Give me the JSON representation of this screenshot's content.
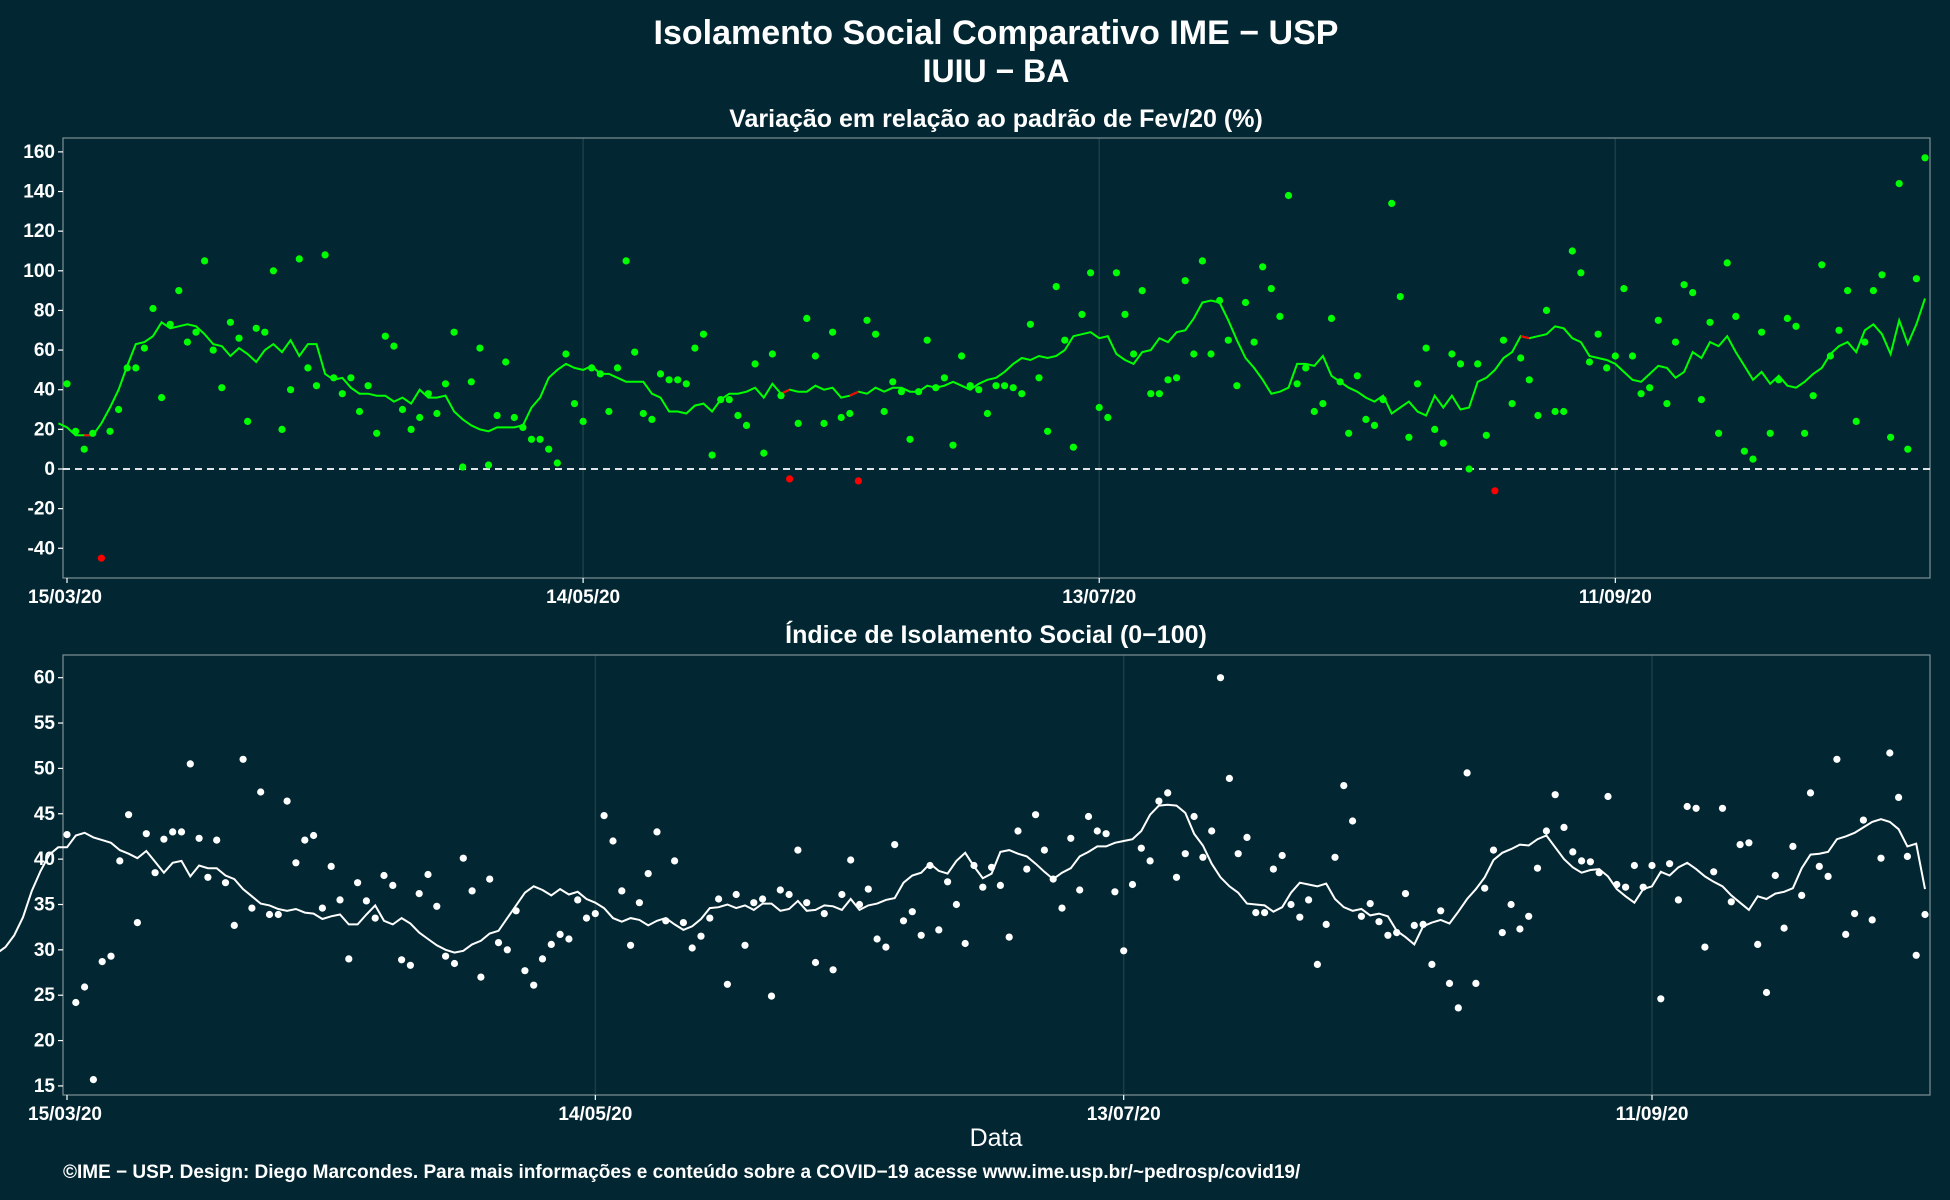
{
  "title": {
    "line1": "Isolamento Social Comparativo IME − USP",
    "line2": "IUIU − BA"
  },
  "footer": "©IME − USP. Design: Diego Marcondes. Para mais informações e conteúdo sobre a COVID−19 acesse www.ime.usp.br/~pedrosp/covid19/",
  "colors": {
    "background": "#022732",
    "positive": "#00ff00",
    "negative": "#ff0000",
    "index": "#ffffff",
    "grid": "#1d3d46"
  },
  "chart_data": [
    {
      "type": "scatter",
      "title": "Variação em relação ao padrão de Fev/20 (%)",
      "xlabel": "",
      "ylabel": "",
      "x_start_label": "15/03/20",
      "x_tick_labels": [
        "15/03/20",
        "14/05/20",
        "13/07/20",
        "11/09/20"
      ],
      "ylim": [
        -55,
        167
      ],
      "y_ticks": [
        -40,
        -20,
        0,
        20,
        40,
        60,
        80,
        100,
        120,
        140,
        160
      ],
      "reference_line": 0,
      "grid": true,
      "series": [
        {
          "values": [
            43,
            19,
            10,
            18,
            -45,
            19,
            30,
            51,
            51,
            61,
            81,
            36,
            73,
            90,
            64,
            69,
            105,
            60,
            41,
            74,
            66,
            24,
            71,
            69,
            100,
            20,
            40,
            106,
            51,
            42,
            108,
            46,
            38,
            46,
            29,
            42,
            18,
            67,
            62,
            30,
            20,
            26,
            38,
            28,
            43,
            69,
            1,
            44,
            61,
            2,
            27,
            54,
            26,
            21,
            15,
            15,
            10,
            3,
            58,
            33,
            24,
            51,
            48,
            29,
            51,
            105,
            59,
            28,
            25,
            48,
            45,
            45,
            43,
            61,
            68,
            7,
            35,
            35,
            27,
            22,
            53,
            8,
            58,
            37,
            -5,
            23,
            76,
            57,
            23,
            69,
            26,
            28,
            -6,
            75,
            68,
            29,
            44,
            39,
            15,
            39,
            65,
            41,
            46,
            12,
            57,
            42,
            40,
            28,
            42,
            42,
            41,
            38,
            73,
            46,
            19,
            92,
            65,
            11,
            78,
            99,
            31,
            26,
            99,
            78,
            58,
            90,
            38,
            38,
            45,
            46,
            95,
            58,
            105,
            58,
            85,
            65,
            42,
            84,
            64,
            102,
            91,
            77,
            138,
            43,
            51,
            29,
            33,
            76,
            44,
            18,
            47,
            25,
            22,
            35,
            134,
            87,
            16,
            43,
            61,
            20,
            13,
            58,
            53,
            0,
            53,
            17,
            -11,
            65,
            33,
            56,
            45,
            27,
            80,
            29,
            29,
            110,
            99,
            54,
            68,
            51,
            57,
            91,
            57,
            38,
            41,
            75,
            33,
            64,
            93,
            89,
            35,
            74,
            18,
            104,
            77,
            9,
            5,
            69,
            18,
            45,
            76,
            72,
            18,
            37,
            103,
            57,
            70,
            90,
            24,
            64,
            90,
            98,
            16,
            144,
            10,
            96,
            157
          ]
        }
      ],
      "moving_average": [
        23,
        21,
        17,
        17,
        17,
        23,
        31,
        40,
        52,
        63,
        64,
        67,
        74,
        71,
        72,
        73,
        72,
        68,
        63,
        62,
        57,
        61,
        58,
        54,
        60,
        63,
        59,
        65,
        57,
        63,
        63,
        48,
        45,
        46,
        41,
        38,
        38,
        37,
        37,
        34,
        36,
        33,
        40,
        36,
        36,
        37,
        29,
        25,
        22,
        20,
        19,
        21,
        21,
        21,
        22,
        31,
        36,
        46,
        50,
        53,
        51,
        50,
        52,
        48,
        48,
        46,
        44,
        44,
        44,
        38,
        36,
        29,
        29,
        28,
        32,
        33,
        29,
        35,
        38,
        38,
        39,
        41,
        36,
        43,
        38,
        40,
        39,
        39,
        42,
        40,
        41,
        36,
        37,
        39,
        38,
        41,
        39,
        41,
        41,
        39,
        39,
        42,
        41,
        42,
        44,
        42,
        40,
        43,
        45,
        46,
        49,
        53,
        56,
        55,
        57,
        56,
        57,
        60,
        67,
        68,
        69,
        66,
        67,
        58,
        55,
        53,
        59,
        60,
        66,
        64,
        69,
        70,
        76,
        84,
        85,
        84,
        75,
        65,
        56,
        51,
        45,
        38,
        39,
        41,
        53,
        53,
        52,
        57,
        47,
        44,
        41,
        39,
        36,
        34,
        37,
        28,
        31,
        34,
        29,
        27,
        37,
        31,
        37,
        30,
        31,
        44,
        46,
        50,
        56,
        59,
        67,
        66,
        67,
        68,
        72,
        71,
        66,
        64,
        57,
        56,
        55,
        53,
        49,
        45,
        44,
        48,
        52,
        51,
        46,
        49,
        59,
        56,
        64,
        62,
        67,
        59,
        52,
        45,
        49,
        43,
        47,
        42,
        41,
        44,
        48,
        51,
        58,
        62,
        64,
        59,
        70,
        73,
        68,
        58,
        75,
        63,
        73,
        86
      ],
      "moving_average_negative_segments": [
        [
          3,
          4
        ],
        [
          84,
          85
        ],
        [
          92,
          93
        ],
        [
          170,
          171
        ]
      ]
    },
    {
      "type": "scatter",
      "title": "Índice de Isolamento Social (0−100)",
      "xlabel": "Data",
      "ylabel": "",
      "x_tick_labels": [
        "15/03/20",
        "14/05/20",
        "13/07/20",
        "11/09/20"
      ],
      "ylim": [
        14,
        62.5
      ],
      "y_ticks": [
        15,
        20,
        25,
        30,
        35,
        40,
        45,
        50,
        55,
        60
      ],
      "grid": true,
      "series": [
        {
          "values": [
            42.7,
            24.2,
            25.9,
            15.7,
            28.7,
            29.3,
            39.8,
            44.9,
            33.0,
            42.8,
            38.5,
            42.2,
            43.0,
            43.0,
            50.5,
            42.3,
            38.0,
            42.1,
            37.4,
            32.7,
            51.0,
            34.6,
            47.4,
            33.9,
            33.9,
            46.4,
            39.6,
            42.1,
            42.6,
            34.6,
            39.2,
            35.5,
            29.0,
            37.4,
            35.4,
            33.5,
            38.2,
            37.1,
            28.9,
            28.3,
            36.2,
            38.3,
            34.8,
            29.3,
            28.5,
            40.1,
            36.5,
            27.0,
            37.8,
            30.8,
            30.0,
            34.3,
            27.7,
            26.1,
            29.0,
            30.6,
            31.7,
            31.2,
            35.5,
            33.5,
            34.0,
            44.8,
            42.0,
            36.5,
            30.5,
            35.2,
            38.4,
            43.0,
            33.2,
            39.8,
            33.0,
            30.2,
            31.5,
            33.5,
            35.6,
            26.2,
            36.1,
            30.5,
            35.2,
            35.6,
            24.9,
            36.6,
            36.1,
            41.0,
            35.2,
            28.6,
            34.0,
            27.8,
            36.1,
            39.9,
            35.0,
            36.7,
            31.2,
            30.3,
            41.6,
            33.2,
            34.2,
            31.6,
            39.3,
            32.2,
            37.5,
            35.0,
            30.7,
            39.3,
            36.9,
            39.1,
            37.1,
            31.4,
            43.1,
            38.9,
            44.9,
            41.0,
            37.8,
            34.6,
            42.3,
            36.6,
            44.7,
            43.1,
            42.8,
            36.4,
            29.9,
            37.2,
            41.2,
            39.8,
            46.4,
            47.3,
            38.0,
            40.6,
            44.7,
            40.2,
            43.1,
            60.0,
            48.9,
            40.6,
            42.4,
            34.1,
            34.1,
            38.9,
            40.4,
            35.0,
            33.6,
            35.5,
            28.4,
            32.8,
            40.2,
            48.1,
            44.2,
            33.7,
            35.1,
            33.1,
            31.6,
            31.9,
            36.2,
            32.7,
            32.8,
            28.4,
            34.3,
            26.3,
            23.6,
            49.5,
            26.3,
            36.8,
            41.0,
            31.9,
            35.0,
            32.3,
            33.7,
            39.0,
            43.1,
            47.1,
            43.5,
            40.8,
            39.8,
            39.7,
            38.5,
            46.9,
            37.2,
            36.9,
            39.3,
            36.9,
            39.3,
            24.6,
            39.5,
            35.5,
            45.8,
            45.6,
            30.3,
            38.6,
            45.6,
            35.3,
            41.6,
            41.8,
            30.6,
            25.3,
            38.2,
            32.4,
            41.4,
            36.0,
            47.3,
            39.2,
            38.1,
            51.0,
            31.7,
            34.0,
            44.3,
            33.3,
            40.1,
            51.7,
            46.8,
            40.3,
            29.4,
            33.9
          ]
        }
      ],
      "moving_average": [
        29.5,
        29.6,
        30.3,
        31.6,
        33.6,
        36.5,
        38.7,
        40.5,
        41.3,
        41.3,
        42.6,
        42.9,
        42.4,
        42.1,
        41.8,
        41.0,
        40.6,
        40.1,
        40.9,
        39.7,
        38.5,
        39.6,
        39.8,
        38.1,
        39.3,
        39.0,
        39.0,
        38.2,
        37.8,
        36.7,
        35.9,
        35.1,
        34.9,
        34.5,
        34.3,
        34.5,
        34.1,
        34.0,
        33.4,
        33.7,
        33.9,
        32.8,
        32.8,
        33.9,
        34.9,
        33.2,
        32.8,
        33.5,
        32.9,
        31.9,
        31.2,
        30.5,
        30.0,
        29.7,
        29.9,
        30.6,
        31.0,
        31.8,
        32.1,
        33.5,
        34.9,
        36.3,
        37.0,
        36.6,
        36.0,
        36.7,
        36.1,
        36.4,
        35.6,
        35.2,
        34.6,
        33.5,
        33.1,
        33.5,
        33.3,
        32.7,
        33.2,
        33.5,
        32.8,
        32.2,
        32.6,
        33.4,
        34.6,
        34.7,
        35.0,
        34.6,
        34.9,
        34.4,
        35.1,
        35.1,
        34.3,
        34.5,
        35.4,
        34.3,
        34.4,
        34.9,
        34.8,
        34.4,
        35.6,
        34.4,
        34.9,
        35.1,
        35.5,
        35.7,
        37.4,
        38.2,
        38.5,
        39.5,
        38.7,
        38.4,
        39.8,
        40.7,
        39.2,
        37.9,
        38.4,
        40.8,
        41.0,
        40.6,
        40.3,
        39.5,
        38.6,
        37.8,
        38.5,
        39.0,
        40.3,
        40.8,
        41.4,
        41.4,
        41.8,
        42.0,
        42.2,
        43.1,
        44.9,
        45.9,
        46.0,
        45.9,
        45.1,
        42.8,
        41.5,
        39.5,
        38.0,
        37.0,
        36.3,
        35.1,
        35.0,
        34.9,
        34.2,
        34.7,
        36.3,
        37.4,
        37.2,
        37.0,
        37.3,
        35.6,
        34.7,
        34.3,
        34.5,
        33.8,
        34.0,
        33.7,
        32.1,
        31.4,
        30.6,
        32.6,
        33.0,
        33.3,
        32.9,
        34.2,
        35.6,
        36.7,
        38.0,
        39.9,
        40.7,
        41.1,
        41.6,
        41.5,
        42.2,
        42.6,
        41.3,
        40.0,
        39.1,
        38.5,
        38.8,
        38.9,
        38.1,
        36.7,
        35.9,
        35.2,
        36.7,
        37.0,
        38.6,
        38.2,
        39.1,
        39.6,
        38.9,
        38.1,
        37.5,
        37.0,
        36.0,
        35.2,
        34.4,
        35.9,
        35.6,
        36.2,
        36.4,
        36.8,
        39.0,
        40.5,
        40.6,
        40.8,
        42.2,
        42.5,
        42.9,
        43.5,
        44.1,
        44.4,
        44.1,
        43.3,
        41.4,
        41.7,
        36.7
      ]
    }
  ]
}
